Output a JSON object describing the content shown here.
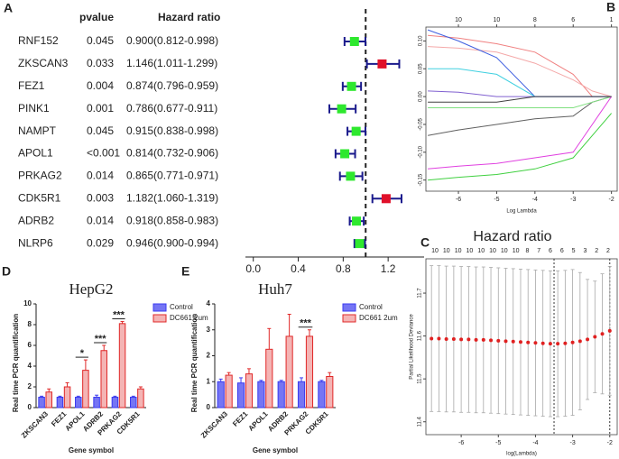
{
  "chart_data": [
    {
      "type": "forest",
      "panel": "A",
      "column_headers": [
        "pvalue",
        "Hazard ratio"
      ],
      "categories": [
        "RNF152",
        "ZKSCAN3",
        "FEZ1",
        "PINK1",
        "NAMPT",
        "APOL1",
        "PRKAG2",
        "CDK5R1",
        "ADRB2",
        "NLRP6"
      ],
      "pvalues": [
        "0.045",
        "0.033",
        "0.004",
        "0.001",
        "0.045",
        "<0.001",
        "0.014",
        "0.003",
        "0.014",
        "0.029"
      ],
      "values": [
        0.9,
        1.146,
        0.874,
        0.786,
        0.915,
        0.814,
        0.865,
        1.182,
        0.918,
        0.946
      ],
      "lower": [
        0.812,
        1.011,
        0.796,
        0.677,
        0.838,
        0.732,
        0.771,
        1.06,
        0.858,
        0.9
      ],
      "upper": [
        0.998,
        1.299,
        0.959,
        0.911,
        0.998,
        0.906,
        0.971,
        1.319,
        0.983,
        0.994
      ],
      "value_labels": [
        "0.900(0.812-0.998)",
        "1.146(1.011-1.299)",
        "0.874(0.796-0.959)",
        "0.786(0.677-0.911)",
        "0.915(0.838-0.998)",
        "0.814(0.732-0.906)",
        "0.865(0.771-0.971)",
        "1.182(1.060-1.319)",
        "0.918(0.858-0.983)",
        "0.946(0.900-0.994)"
      ],
      "colors": [
        "#2ee82e",
        "#e0102a",
        "#2ee82e",
        "#2ee82e",
        "#2ee82e",
        "#2ee82e",
        "#2ee82e",
        "#e0102a",
        "#2ee82e",
        "#2ee82e"
      ],
      "ci_color": "#1a1a8c",
      "reference_line": 1,
      "xlim": [
        -0.07,
        1.52
      ],
      "xticks": [
        {
          "value": 0,
          "label": "0.0"
        },
        {
          "value": 0.4,
          "label": "0.4"
        },
        {
          "value": 0.8,
          "label": "0.8"
        },
        {
          "value": 1.2,
          "label": "1.2"
        }
      ]
    },
    {
      "type": "line",
      "panel": "B",
      "x_label": "Log Lambda",
      "x": [
        -6.8,
        -6,
        -5,
        -4,
        -3,
        -2.5,
        -2
      ],
      "series": [
        {
          "color": "#f08080",
          "values": [
            0.11,
            0.105,
            0.095,
            0.08,
            0.04,
            0.0,
            0.0
          ]
        },
        {
          "color": "#f4a8a8",
          "values": [
            0.09,
            0.087,
            0.08,
            0.06,
            0.03,
            0.01,
            0.0
          ]
        },
        {
          "color": "#4060e0",
          "values": [
            0.12,
            0.1,
            0.07,
            0.0,
            0.0,
            0.0,
            0.0
          ]
        },
        {
          "color": "#40d0e0",
          "values": [
            0.05,
            0.05,
            0.04,
            0.0,
            0.0,
            0.0,
            0.0
          ]
        },
        {
          "color": "#606060",
          "values": [
            -0.07,
            -0.06,
            -0.05,
            -0.04,
            -0.035,
            -0.01,
            0.0
          ]
        },
        {
          "color": "#80e080",
          "values": [
            -0.02,
            -0.02,
            -0.02,
            -0.02,
            -0.02,
            -0.01,
            0.0
          ]
        },
        {
          "color": "#8060d0",
          "values": [
            0.01,
            0.008,
            0.0,
            0.0,
            0.0,
            0.0,
            0.0
          ]
        },
        {
          "color": "#e040e0",
          "values": [
            -0.13,
            -0.125,
            -0.12,
            -0.11,
            -0.1,
            -0.05,
            0.0
          ]
        },
        {
          "color": "#40d040",
          "values": [
            -0.15,
            -0.145,
            -0.14,
            -0.13,
            -0.11,
            -0.07,
            -0.03
          ]
        },
        {
          "color": "#404040",
          "values": [
            -0.01,
            -0.01,
            -0.01,
            0.0,
            0.0,
            0.0,
            0.0
          ]
        }
      ],
      "xlim": [
        -6.85,
        -1.85
      ],
      "xticks": [
        -6,
        -5,
        -4,
        -3,
        -2
      ],
      "top_labels": [
        10,
        10,
        8,
        6,
        1
      ],
      "ylim": [
        -0.17,
        0.125
      ],
      "yticks": [
        {
          "value": 0.1,
          "label": "0.10"
        },
        0.05,
        {
          "value": 0,
          "label": "0.00"
        },
        -0.05,
        {
          "value": -0.1,
          "label": "-0.10"
        },
        -0.15
      ]
    },
    {
      "type": "errorbar",
      "panel": "C",
      "title": "Hazard ratio",
      "x_label": "log(Lambda)",
      "y_label": "Partial Likelihood Deviance",
      "x": [
        -6.8,
        -6.6,
        -6.4,
        -6.2,
        -6.0,
        -5.8,
        -5.6,
        -5.4,
        -5.2,
        -5.0,
        -4.8,
        -4.6,
        -4.4,
        -4.2,
        -4.0,
        -3.8,
        -3.6,
        -3.4,
        -3.2,
        -3.0,
        -2.8,
        -2.6,
        -2.4,
        -2.2,
        -2.0
      ],
      "values": [
        11.594,
        11.594,
        11.593,
        11.593,
        11.592,
        11.592,
        11.591,
        11.591,
        11.59,
        11.589,
        11.588,
        11.587,
        11.586,
        11.585,
        11.584,
        11.583,
        11.582,
        11.582,
        11.583,
        11.585,
        11.588,
        11.592,
        11.598,
        11.605,
        11.612
      ],
      "errors": [
        0.17,
        0.17,
        0.17,
        0.17,
        0.17,
        0.17,
        0.17,
        0.17,
        0.17,
        0.17,
        0.17,
        0.17,
        0.17,
        0.17,
        0.17,
        0.17,
        0.17,
        0.17,
        0.17,
        0.17,
        0.16,
        0.14,
        0.13,
        0.14,
        0.15
      ],
      "color": "#e02020",
      "error_color": "#a8a8a8",
      "vlines": [
        -3.5,
        -2.0
      ],
      "top_labels": [
        10,
        10,
        10,
        10,
        10,
        10,
        10,
        10,
        8,
        7,
        6,
        6,
        5,
        3,
        2,
        2
      ],
      "xlim": [
        -6.95,
        -1.8
      ],
      "xticks": [
        -6,
        -5,
        -4,
        -3,
        -2
      ],
      "ylim": [
        11.37,
        11.78
      ],
      "yticks": [
        11.4,
        11.5,
        11.6,
        11.7
      ]
    },
    {
      "type": "grouped_bar",
      "panel": "D",
      "title": "HepG2",
      "x_label": "Gene symbol",
      "y_label": "Real time PCR quantification",
      "categories": [
        "ZKSCAN3",
        "FEZ1",
        "APOL1",
        "ADRB2",
        "PRKAG2",
        "CDK5R1"
      ],
      "series": [
        {
          "name": "Control",
          "color": "#3a3af0",
          "values": [
            1.0,
            1.0,
            1.0,
            1.0,
            1.0,
            1.0
          ],
          "errors": [
            0.1,
            0.1,
            0.1,
            0.2,
            0.1,
            0.1
          ]
        },
        {
          "name": "DC661 2um",
          "color": "#e02828",
          "values": [
            1.5,
            2.0,
            3.6,
            5.5,
            8.1,
            1.8
          ],
          "errors": [
            0.3,
            0.4,
            1.0,
            0.5,
            0.2,
            0.2
          ]
        }
      ],
      "significance": [
        null,
        null,
        "*",
        "***",
        "***",
        null
      ],
      "ylim": [
        0,
        10
      ],
      "yticks": [
        0,
        2,
        4,
        6,
        8,
        10
      ]
    },
    {
      "type": "grouped_bar",
      "panel": "E",
      "title": "Huh7",
      "x_label": "Gene symbol",
      "y_label": "Real time PCR quantification",
      "categories": [
        "ZKSCAN3",
        "FEZ1",
        "APOL1",
        "ADRB2",
        "PRKAG2",
        "CDK5R1"
      ],
      "series": [
        {
          "name": "Control",
          "color": "#3a3af0",
          "values": [
            1.0,
            0.95,
            1.0,
            1.0,
            1.0,
            1.0
          ],
          "errors": [
            0.1,
            0.2,
            0.05,
            0.05,
            0.15,
            0.05
          ]
        },
        {
          "name": "DC661 2um",
          "color": "#e02828",
          "values": [
            1.25,
            1.3,
            2.25,
            2.75,
            2.75,
            1.2
          ],
          "errors": [
            0.1,
            0.2,
            0.8,
            0.85,
            0.25,
            0.15
          ]
        }
      ],
      "significance": [
        null,
        null,
        null,
        null,
        "***",
        null
      ],
      "ylim": [
        0,
        4
      ],
      "yticks": [
        0,
        1,
        2,
        3,
        4
      ]
    }
  ]
}
